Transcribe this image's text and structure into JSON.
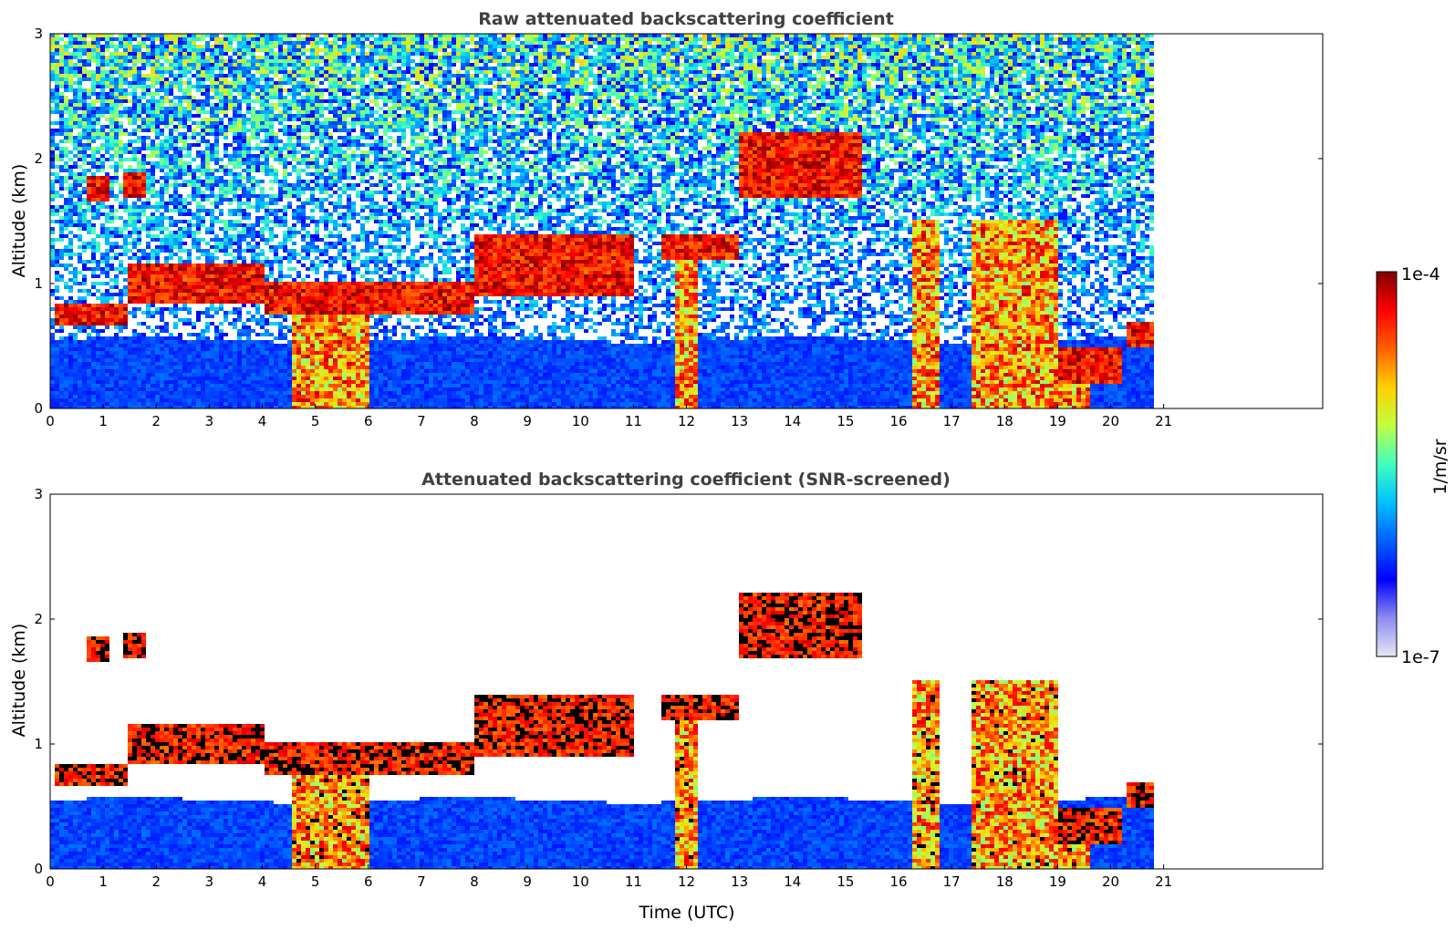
{
  "figure": {
    "xlabel": "Time (UTC)"
  },
  "chart_data": [
    {
      "type": "heatmap",
      "title": "Raw attenuated backscattering coefficient",
      "xlabel": "",
      "ylabel": "Altitude (km)",
      "xlim": [
        0,
        24
      ],
      "ylim": [
        0,
        3
      ],
      "xticks": [
        "0",
        "1",
        "2",
        "3",
        "4",
        "5",
        "6",
        "7",
        "8",
        "9",
        "10",
        "11",
        "12",
        "13",
        "14",
        "15",
        "16",
        "17",
        "18",
        "19",
        "20",
        "21"
      ],
      "yticks": [
        "0",
        "1",
        "2",
        "3"
      ],
      "data_end_time": 20.8,
      "screened": false,
      "layers": [
        {
          "start": 0.1,
          "end": 1.5,
          "alt": [
            0.65,
            0.85
          ]
        },
        {
          "start": 1.5,
          "end": 4.0,
          "alt": [
            0.85,
            1.15
          ]
        },
        {
          "start": 4.0,
          "end": 8.0,
          "alt": [
            0.75,
            1.0
          ]
        },
        {
          "start": 8.0,
          "end": 11.0,
          "alt": [
            0.9,
            1.4
          ]
        },
        {
          "start": 11.5,
          "end": 13.0,
          "alt": [
            1.2,
            1.4
          ]
        },
        {
          "start": 13.0,
          "end": 15.3,
          "alt": [
            1.7,
            2.2
          ]
        },
        {
          "start": 19.0,
          "end": 20.2,
          "alt": [
            0.2,
            0.5
          ]
        },
        {
          "start": 20.3,
          "end": 20.8,
          "alt": [
            0.5,
            0.7
          ]
        }
      ],
      "elevated_clouds": [
        {
          "start": 0.7,
          "end": 1.1,
          "alt": [
            1.65,
            1.85
          ]
        },
        {
          "start": 1.4,
          "end": 1.8,
          "alt": [
            1.7,
            1.9
          ]
        }
      ],
      "precipitation_shafts": [
        {
          "start": 4.6,
          "end": 6.0
        },
        {
          "start": 11.8,
          "end": 12.2
        },
        {
          "start": 16.3,
          "end": 16.8
        },
        {
          "start": 17.4,
          "end": 18.6
        },
        {
          "start": 18.6,
          "end": 19.6
        }
      ]
    },
    {
      "type": "heatmap",
      "title": "Attenuated backscattering coefficient (SNR-screened)",
      "xlabel": "Time (UTC)",
      "ylabel": "Altitude (km)",
      "xlim": [
        0,
        24
      ],
      "ylim": [
        0,
        3
      ],
      "xticks": [
        "0",
        "1",
        "2",
        "3",
        "4",
        "5",
        "6",
        "7",
        "8",
        "9",
        "10",
        "11",
        "12",
        "13",
        "14",
        "15",
        "16",
        "17",
        "18",
        "19",
        "20",
        "21"
      ],
      "yticks": [
        "0",
        "1",
        "2",
        "3"
      ],
      "data_end_time": 20.8,
      "screened": true
    }
  ],
  "colorbar": {
    "min_label": "1e-7",
    "max_label": "1e-4",
    "unit_label": "1/m/sr",
    "colormap": [
      "#e6e6f5",
      "#8c8cf0",
      "#0000ff",
      "#0060ff",
      "#00c0ff",
      "#40ffc0",
      "#c0ff40",
      "#ffd000",
      "#ff6000",
      "#ff0000",
      "#800000"
    ]
  }
}
